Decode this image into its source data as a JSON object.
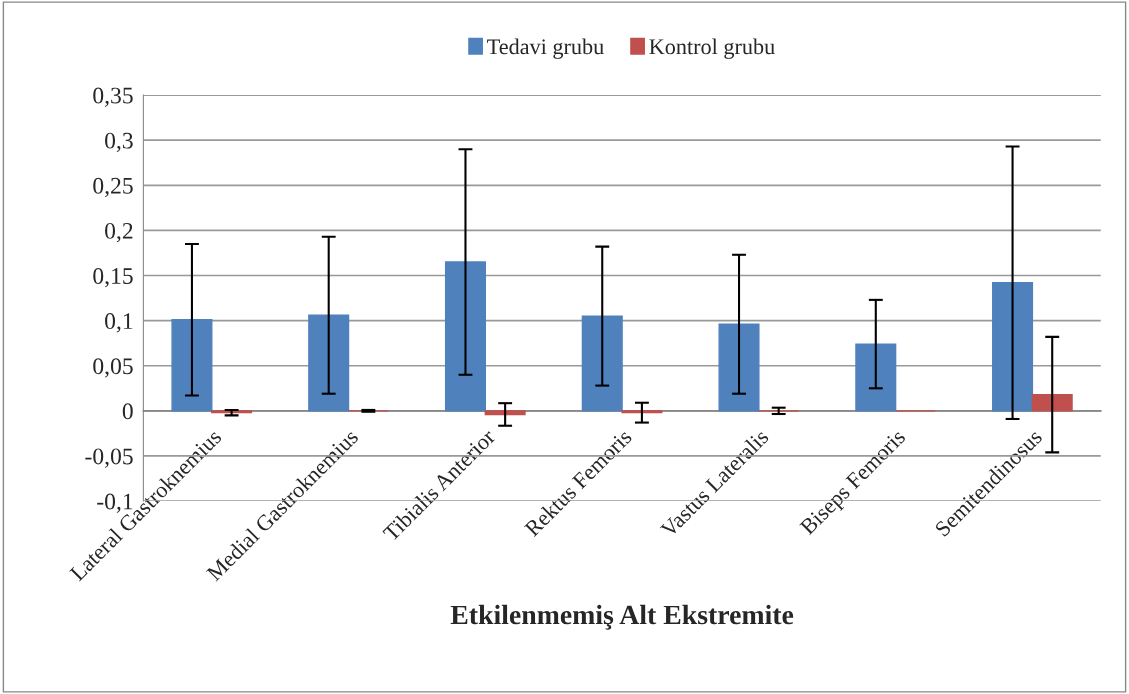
{
  "chart_data": {
    "type": "bar",
    "xlabel": "Etkilenmemiş Alt Ekstremite",
    "categories": [
      "Lateral Gastroknemius",
      "Medial Gastroknemius",
      "Tibialis Anterior",
      "Rektus Femoris",
      "Vastus Lateralis",
      "Biseps Femoris",
      "Semitendinosus"
    ],
    "series": [
      {
        "name": "Tedavi grubu",
        "color": "#4f81bd",
        "values": [
          0.101,
          0.106,
          0.165,
          0.105,
          0.096,
          0.074,
          0.142
        ],
        "errors": [
          0.084,
          0.087,
          0.125,
          0.077,
          0.077,
          0.049,
          0.151
        ]
      },
      {
        "name": "Kontrol grubu",
        "color": "#c0504d",
        "values": [
          -0.002,
          0.0,
          -0.004,
          -0.002,
          0.0,
          0.0,
          0.018
        ],
        "errors": [
          0.003,
          0.001,
          0.0125,
          0.011,
          0.0035,
          null,
          0.064
        ]
      }
    ],
    "ylim": [
      -0.1,
      0.35
    ],
    "yticks": [
      {
        "value": -0.1,
        "label": "-0,1"
      },
      {
        "value": -0.05,
        "label": "-0,05"
      },
      {
        "value": 0,
        "label": "0"
      },
      {
        "value": 0.05,
        "label": "0,05"
      },
      {
        "value": 0.1,
        "label": "0,1"
      },
      {
        "value": 0.15,
        "label": "0,15"
      },
      {
        "value": 0.2,
        "label": "0,2"
      },
      {
        "value": 0.25,
        "label": "0,25"
      },
      {
        "value": 0.3,
        "label": "0,3"
      },
      {
        "value": 0.35,
        "label": "0,35"
      }
    ],
    "grid": "y",
    "legend": "top"
  }
}
